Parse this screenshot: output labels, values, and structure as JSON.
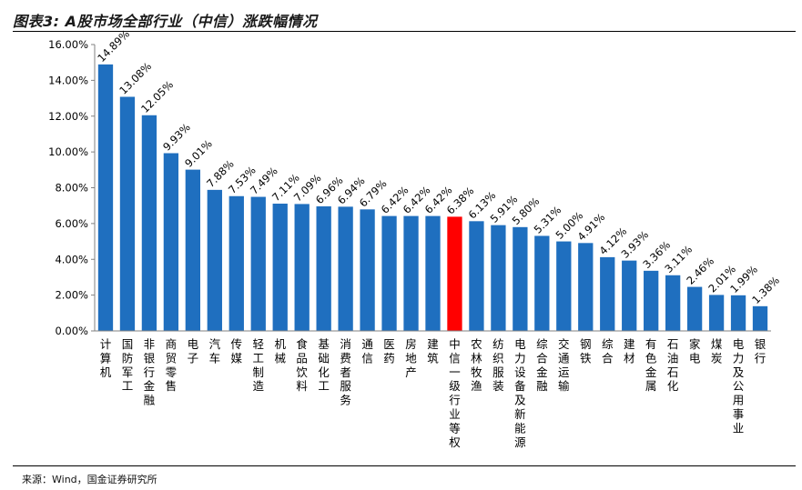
{
  "title": "图表3: A股市场全部行业（中信）涨跌幅情况",
  "source": "来源：Wind，国金证券研究所",
  "colors": {
    "bar": "#1f6fbf",
    "highlight": "#ff0000",
    "axis": "#808080",
    "text": "#000000"
  },
  "chart_data": {
    "type": "bar",
    "title": "图表3: A股市场全部行业（中信）涨跌幅情况",
    "xlabel": "",
    "ylabel": "",
    "ylim": [
      0,
      16
    ],
    "yticks": [
      "0.00%",
      "2.00%",
      "4.00%",
      "6.00%",
      "8.00%",
      "10.00%",
      "12.00%",
      "14.00%",
      "16.00%"
    ],
    "grid": false,
    "legend": "none",
    "highlight_category": "中信一级行业等权",
    "categories": [
      "计算机",
      "国防军工",
      "非银行金融",
      "商贸零售",
      "电子",
      "汽车",
      "传媒",
      "轻工制造",
      "机械",
      "食品饮料",
      "基础化工",
      "消费者服务",
      "通信",
      "医药",
      "房地产",
      "建筑",
      "中信一级行业等权",
      "农林牧渔",
      "纺织服装",
      "电力设备及新能源",
      "综合金融",
      "交通运输",
      "钢铁",
      "综合",
      "建材",
      "有色金属",
      "石油石化",
      "家电",
      "煤炭",
      "电力及公用事业",
      "银行"
    ],
    "values": [
      14.89,
      13.08,
      12.05,
      9.93,
      9.01,
      7.88,
      7.53,
      7.49,
      7.11,
      7.09,
      6.96,
      6.94,
      6.79,
      6.42,
      6.42,
      6.42,
      6.38,
      6.13,
      5.91,
      5.8,
      5.31,
      5.0,
      4.91,
      4.12,
      3.93,
      3.36,
      3.11,
      2.46,
      2.01,
      1.99,
      1.38
    ],
    "labels": [
      "14.89%",
      "13.08%",
      "12.05%",
      "9.93%",
      "9.01%",
      "7.88%",
      "7.53%",
      "7.49%",
      "7.11%",
      "7.09%",
      "6.96%",
      "6.94%",
      "6.79%",
      "6.42%",
      "6.42%",
      "6.42%",
      "6.38%",
      "6.13%",
      "5.91%",
      "5.80%",
      "5.31%",
      "5.00%",
      "4.91%",
      "4.12%",
      "3.93%",
      "3.36%",
      "3.11%",
      "2.46%",
      "2.01%",
      "1.99%",
      "1.38%"
    ]
  }
}
